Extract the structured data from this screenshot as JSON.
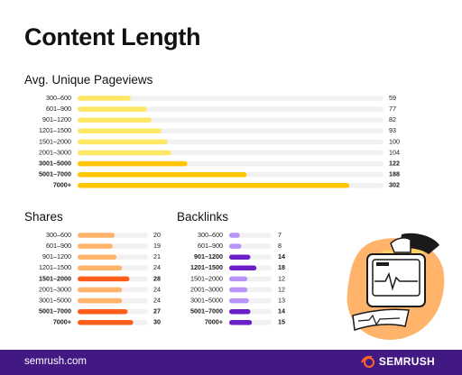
{
  "page": {
    "title": "Content Length"
  },
  "footer": {
    "url": "semrush.com",
    "brand": "SEMRUSH"
  },
  "colors": {
    "track": "#f1f1f1",
    "yellow_light": "#ffe766",
    "yellow_dark": "#ffc600",
    "orange_light": "#ffb36b",
    "orange_dark": "#ff5e1a",
    "purple_light": "#b894f7",
    "purple_dark": "#6a1fc9",
    "footer_bg": "#421983",
    "brand_accent": "#ff642d"
  },
  "chart_data": [
    {
      "type": "bar",
      "orientation": "horizontal",
      "title": "Avg. Unique Pageviews",
      "categories": [
        "300–600",
        "601–900",
        "901–1200",
        "1201–1500",
        "1501–2000",
        "2001–3000",
        "3001–5000",
        "5001–7000",
        "7000+"
      ],
      "values": [
        59,
        77,
        82,
        93,
        100,
        104,
        122,
        188,
        302
      ],
      "xlim": [
        0,
        340
      ],
      "highlighted": [
        "3001–5000",
        "5001–7000",
        "7000+"
      ],
      "grid": false,
      "legend": "none"
    },
    {
      "type": "bar",
      "orientation": "horizontal",
      "title": "Shares",
      "categories": [
        "300–600",
        "601–900",
        "901–1200",
        "1201–1500",
        "1501–2000",
        "2001–3000",
        "3001–5000",
        "5001–7000",
        "7000+"
      ],
      "values": [
        20,
        19,
        21,
        24,
        28,
        24,
        24,
        27,
        30
      ],
      "xlim": [
        0,
        38
      ],
      "highlighted": [
        "1501–2000",
        "5001–7000",
        "7000+"
      ],
      "grid": false,
      "legend": "none"
    },
    {
      "type": "bar",
      "orientation": "horizontal",
      "title": "Backlinks",
      "categories": [
        "300–600",
        "601–900",
        "901–1200",
        "1201–1500",
        "1501–2000",
        "2001–3000",
        "3001–5000",
        "5001–7000",
        "7000+"
      ],
      "values": [
        7,
        8,
        14,
        18,
        12,
        12,
        13,
        14,
        15
      ],
      "xlim": [
        0,
        28
      ],
      "highlighted": [
        "901–1200",
        "1201–1500",
        "5001–7000",
        "7000+"
      ],
      "grid": false,
      "legend": "none"
    }
  ]
}
